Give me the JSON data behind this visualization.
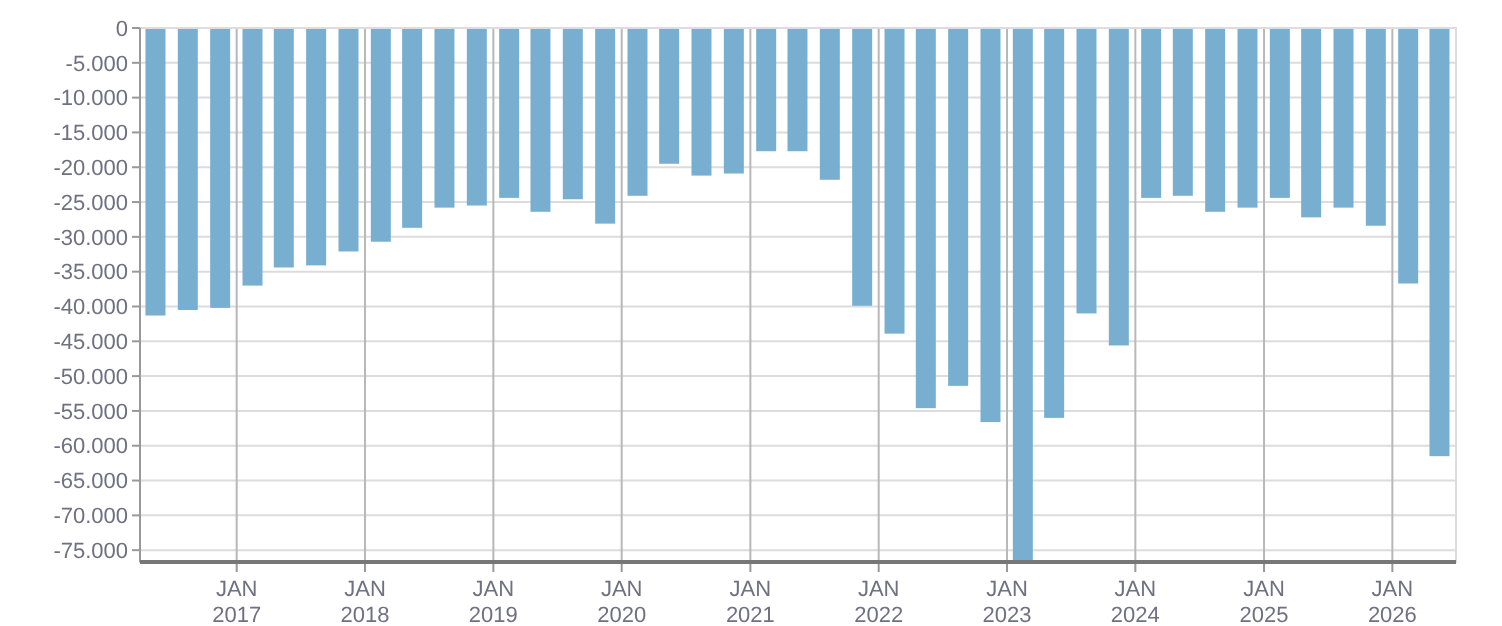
{
  "chart_data": {
    "type": "bar",
    "color": "#78afd1",
    "grid": true,
    "x": [
      "2016-05-15",
      "2016-08-15",
      "2016-11-15",
      "2017-02-15",
      "2017-05-15",
      "2017-08-15",
      "2017-11-15",
      "2018-02-15",
      "2018-05-15",
      "2018-08-15",
      "2018-11-15",
      "2019-02-15",
      "2019-05-15",
      "2019-08-15",
      "2019-11-15",
      "2020-02-15",
      "2020-05-15",
      "2020-08-15",
      "2020-11-15",
      "2021-02-15",
      "2021-05-15",
      "2021-08-15",
      "2021-11-15",
      "2022-02-15",
      "2022-05-15",
      "2022-08-15",
      "2022-11-15",
      "2023-02-15",
      "2023-05-15",
      "2023-08-15",
      "2023-11-15",
      "2024-02-15",
      "2024-05-15",
      "2024-08-15",
      "2024-11-15",
      "2025-02-15",
      "2025-05-15",
      "2025-08-15",
      "2025-11-15",
      "2026-02-15",
      "2026-05-15"
    ],
    "values": [
      -41300,
      -40500,
      -40200,
      -37000,
      -34400,
      -34100,
      -32100,
      -30700,
      -28700,
      -25800,
      -25500,
      -24400,
      -26400,
      -24600,
      -28100,
      -24100,
      -19500,
      -21200,
      -20900,
      -17700,
      -17700,
      -21800,
      -39900,
      -43900,
      -54600,
      -51400,
      -56600,
      -76700,
      -56000,
      -41000,
      -45600,
      -24400,
      -24100,
      -26400,
      -25800,
      -24400,
      -27200,
      -25800,
      -28400,
      -36700,
      -61500
    ],
    "xlim": [
      "2016-04-01",
      "2026-07-01"
    ],
    "xticks": [
      {
        "value": "2017-01-01",
        "label": "JAN\n2017"
      },
      {
        "value": "2018-01-01",
        "label": "JAN\n2018"
      },
      {
        "value": "2019-01-01",
        "label": "JAN\n2019"
      },
      {
        "value": "2020-01-01",
        "label": "JAN\n2020"
      },
      {
        "value": "2021-01-01",
        "label": "JAN\n2021"
      },
      {
        "value": "2022-01-01",
        "label": "JAN\n2022"
      },
      {
        "value": "2023-01-01",
        "label": "JAN\n2023"
      },
      {
        "value": "2024-01-01",
        "label": "JAN\n2024"
      },
      {
        "value": "2025-01-01",
        "label": "JAN\n2025"
      },
      {
        "value": "2026-01-01",
        "label": "JAN\n2026"
      }
    ],
    "ylim": [
      -76700,
      0
    ],
    "yticks": [
      0,
      {
        "value": -5000,
        "label": "-5.000"
      },
      {
        "value": -10000,
        "label": "-10.000"
      },
      {
        "value": -15000,
        "label": "-15.000"
      },
      {
        "value": -20000,
        "label": "-20.000"
      },
      {
        "value": -25000,
        "label": "-25.000"
      },
      {
        "value": -30000,
        "label": "-30.000"
      },
      {
        "value": -35000,
        "label": "-35.000"
      },
      {
        "value": -40000,
        "label": "-40.000"
      },
      {
        "value": -45000,
        "label": "-45.000"
      },
      {
        "value": -50000,
        "label": "-50.000"
      },
      {
        "value": -55000,
        "label": "-55.000"
      },
      {
        "value": -60000,
        "label": "-60.000"
      },
      {
        "value": -65000,
        "label": "-65.000"
      },
      {
        "value": -70000,
        "label": "-70.000"
      },
      {
        "value": -75000,
        "label": "-75.000"
      }
    ]
  }
}
